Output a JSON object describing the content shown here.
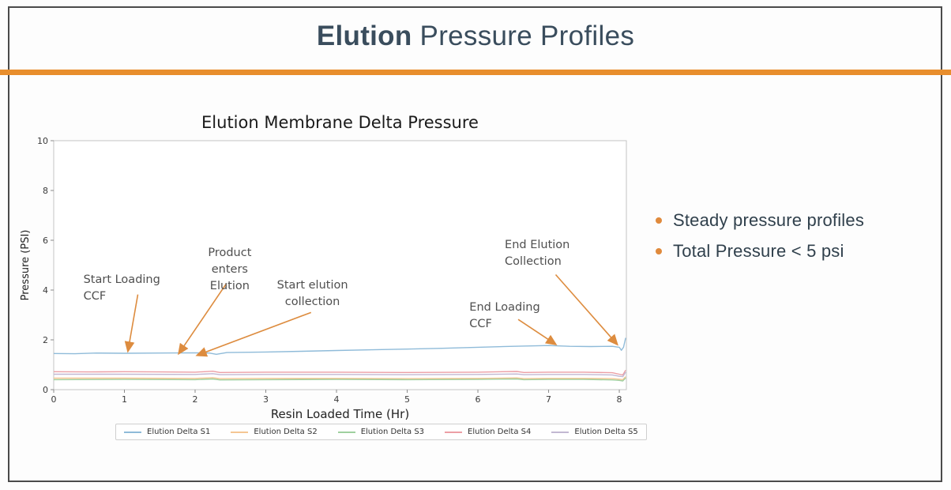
{
  "header": {
    "title_bold": "Elution",
    "title_rest": " Pressure Profiles",
    "accent_color": "#e88e2d",
    "title_color": "#3a4d5d"
  },
  "bullets": {
    "items": [
      "Steady pressure profiles",
      "Total Pressure < 5 psi"
    ],
    "dot_color": "#e08a3c"
  },
  "chart_data": {
    "type": "line",
    "title": "Elution Membrane Delta Pressure",
    "xlabel": "Resin Loaded Time (Hr)",
    "ylabel": "Pressure (PSI)",
    "xlim": [
      0,
      8.1
    ],
    "ylim": [
      0,
      10
    ],
    "xticks": [
      0,
      1,
      2,
      3,
      4,
      5,
      6,
      7,
      8
    ],
    "yticks": [
      0,
      2,
      4,
      6,
      8,
      10
    ],
    "grid": false,
    "legend_position": "bottom",
    "arrow_color": "#dd8c3f",
    "annotation_text_color": "#4f4f4f",
    "series": [
      {
        "name": "Elution Delta S1",
        "color": "#8fbbd9",
        "points": [
          [
            0,
            1.45
          ],
          [
            0.3,
            1.44
          ],
          [
            0.6,
            1.47
          ],
          [
            1.0,
            1.46
          ],
          [
            1.5,
            1.47
          ],
          [
            2.0,
            1.48
          ],
          [
            2.2,
            1.47
          ],
          [
            2.3,
            1.42
          ],
          [
            2.45,
            1.49
          ],
          [
            3.0,
            1.51
          ],
          [
            3.5,
            1.54
          ],
          [
            4.0,
            1.57
          ],
          [
            4.5,
            1.6
          ],
          [
            5.0,
            1.63
          ],
          [
            5.5,
            1.66
          ],
          [
            6.0,
            1.7
          ],
          [
            6.5,
            1.74
          ],
          [
            7.0,
            1.77
          ],
          [
            7.3,
            1.74
          ],
          [
            7.6,
            1.73
          ],
          [
            7.9,
            1.74
          ],
          [
            8.0,
            1.7
          ],
          [
            8.03,
            1.58
          ],
          [
            8.06,
            1.7
          ],
          [
            8.09,
            2.08
          ]
        ]
      },
      {
        "name": "Elution Delta S2",
        "color": "#f5c693",
        "points": [
          [
            0,
            0.46
          ],
          [
            1.0,
            0.46
          ],
          [
            2.0,
            0.45
          ],
          [
            2.25,
            0.48
          ],
          [
            2.35,
            0.44
          ],
          [
            3.0,
            0.45
          ],
          [
            4.0,
            0.45
          ],
          [
            5.0,
            0.44
          ],
          [
            6.0,
            0.45
          ],
          [
            6.55,
            0.47
          ],
          [
            6.65,
            0.44
          ],
          [
            7.0,
            0.45
          ],
          [
            7.5,
            0.45
          ],
          [
            7.9,
            0.44
          ],
          [
            8.0,
            0.42
          ],
          [
            8.05,
            0.4
          ],
          [
            8.09,
            0.52
          ]
        ]
      },
      {
        "name": "Elution Delta S3",
        "color": "#9fd09f",
        "points": [
          [
            0,
            0.4
          ],
          [
            1.0,
            0.41
          ],
          [
            2.0,
            0.4
          ],
          [
            2.25,
            0.43
          ],
          [
            2.35,
            0.39
          ],
          [
            3.0,
            0.4
          ],
          [
            4.0,
            0.41
          ],
          [
            5.0,
            0.4
          ],
          [
            6.0,
            0.41
          ],
          [
            6.55,
            0.43
          ],
          [
            6.65,
            0.4
          ],
          [
            7.0,
            0.41
          ],
          [
            7.5,
            0.41
          ],
          [
            7.9,
            0.39
          ],
          [
            8.0,
            0.37
          ],
          [
            8.05,
            0.35
          ],
          [
            8.09,
            0.47
          ]
        ]
      },
      {
        "name": "Elution Delta S4",
        "color": "#ec9fa5",
        "points": [
          [
            0,
            0.72
          ],
          [
            0.5,
            0.71
          ],
          [
            1.0,
            0.72
          ],
          [
            1.5,
            0.71
          ],
          [
            2.0,
            0.7
          ],
          [
            2.25,
            0.74
          ],
          [
            2.35,
            0.69
          ],
          [
            3.0,
            0.7
          ],
          [
            4.0,
            0.7
          ],
          [
            5.0,
            0.69
          ],
          [
            6.0,
            0.7
          ],
          [
            6.55,
            0.73
          ],
          [
            6.65,
            0.69
          ],
          [
            7.0,
            0.7
          ],
          [
            7.5,
            0.7
          ],
          [
            7.9,
            0.68
          ],
          [
            8.0,
            0.62
          ],
          [
            8.05,
            0.59
          ],
          [
            8.09,
            0.78
          ]
        ]
      },
      {
        "name": "Elution Delta S5",
        "color": "#c2b8d2",
        "points": [
          [
            0,
            0.62
          ],
          [
            1.0,
            0.62
          ],
          [
            2.0,
            0.61
          ],
          [
            2.25,
            0.64
          ],
          [
            2.35,
            0.6
          ],
          [
            3.0,
            0.61
          ],
          [
            4.0,
            0.61
          ],
          [
            5.0,
            0.6
          ],
          [
            6.0,
            0.61
          ],
          [
            6.55,
            0.63
          ],
          [
            6.65,
            0.6
          ],
          [
            7.0,
            0.61
          ],
          [
            7.5,
            0.61
          ],
          [
            7.9,
            0.59
          ],
          [
            8.0,
            0.54
          ],
          [
            8.05,
            0.52
          ],
          [
            8.09,
            0.7
          ]
        ]
      }
    ],
    "annotations": [
      {
        "lines": [
          "Start Loading",
          "CCF"
        ],
        "align": "left",
        "x": 0.42,
        "y_top": 4.7,
        "arrow": {
          "x1": 1.19,
          "y1": 3.82,
          "x2": 1.05,
          "y2": 1.55
        }
      },
      {
        "lines": [
          "Product",
          "enters",
          "Elution"
        ],
        "align": "center",
        "x": 2.49,
        "y_top": 5.78,
        "arrow": {
          "x1": 2.44,
          "y1": 4.25,
          "x2": 1.77,
          "y2": 1.45
        }
      },
      {
        "lines": [
          "Start elution",
          "collection"
        ],
        "align": "center",
        "x": 3.66,
        "y_top": 4.48,
        "arrow": {
          "x1": 3.64,
          "y1": 3.1,
          "x2": 2.03,
          "y2": 1.38
        }
      },
      {
        "lines": [
          "End Loading",
          "CCF"
        ],
        "align": "left",
        "x": 5.88,
        "y_top": 3.59,
        "arrow": {
          "x1": 6.57,
          "y1": 2.82,
          "x2": 7.1,
          "y2": 1.82
        }
      },
      {
        "lines": [
          "End Elution",
          "Collection"
        ],
        "align": "left",
        "x": 6.38,
        "y_top": 6.1,
        "arrow": {
          "x1": 7.1,
          "y1": 4.62,
          "x2": 7.97,
          "y2": 1.82
        }
      }
    ]
  }
}
